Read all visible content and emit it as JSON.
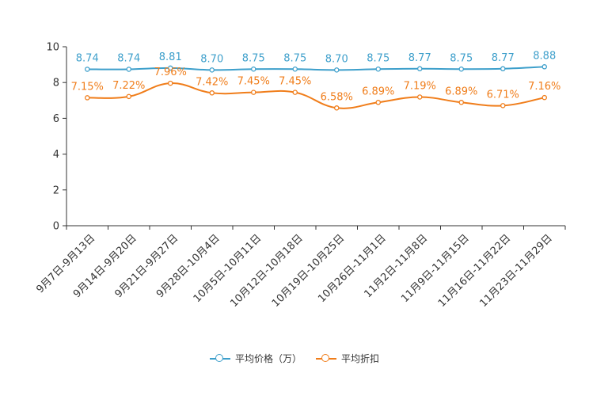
{
  "chart_data": {
    "type": "line",
    "categories": [
      "9月7日-9月13日",
      "9月14日-9月20日",
      "9月21日-9月27日",
      "9月28日-10月4日",
      "10月5日-10月11日",
      "10月12日-10月18日",
      "10月19日-10月25日",
      "10月26日-11月1日",
      "11月2日-11月8日",
      "11月9日-11月15日",
      "11月16日-11月22日",
      "11月23日-11月29日"
    ],
    "series": [
      {
        "name": "平均价格（万）",
        "color": "#3d9fcb",
        "values": [
          8.74,
          8.74,
          8.81,
          8.7,
          8.75,
          8.75,
          8.7,
          8.75,
          8.77,
          8.75,
          8.77,
          8.88
        ],
        "labels": [
          "8.74",
          "8.74",
          "8.81",
          "8.70",
          "8.75",
          "8.75",
          "8.70",
          "8.75",
          "8.77",
          "8.75",
          "8.77",
          "8.88"
        ]
      },
      {
        "name": "平均折扣",
        "color": "#f07d1a",
        "values": [
          7.15,
          7.22,
          7.96,
          7.42,
          7.45,
          7.45,
          6.58,
          6.89,
          7.19,
          6.89,
          6.71,
          7.16
        ],
        "labels": [
          "7.15%",
          "7.22%",
          "7.96%",
          "7.42%",
          "7.45%",
          "7.45%",
          "6.58%",
          "6.89%",
          "7.19%",
          "6.89%",
          "6.71%",
          "7.16%"
        ]
      }
    ],
    "yticks": [
      "0",
      "2",
      "4",
      "6",
      "8",
      "10"
    ],
    "ylim": [
      0,
      10
    ],
    "title": "",
    "xlabel": "",
    "ylabel": "",
    "legend_position": "bottom-center",
    "grid": false
  }
}
